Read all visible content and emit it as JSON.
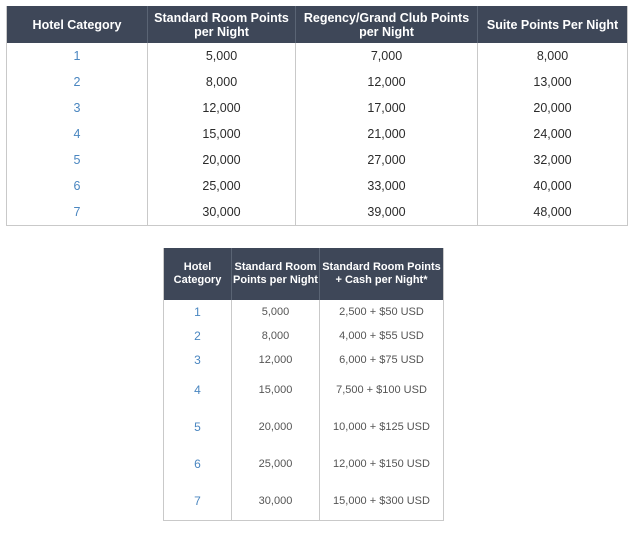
{
  "table1": {
    "headers": [
      "Hotel Category",
      "Standard Room Points per Night",
      "Regency/Grand Club Points per Night",
      "Suite Points Per Night"
    ],
    "rows": [
      [
        "1",
        "5,000",
        "7,000",
        "8,000"
      ],
      [
        "2",
        "8,000",
        "12,000",
        "13,000"
      ],
      [
        "3",
        "12,000",
        "17,000",
        "20,000"
      ],
      [
        "4",
        "15,000",
        "21,000",
        "24,000"
      ],
      [
        "5",
        "20,000",
        "27,000",
        "32,000"
      ],
      [
        "6",
        "25,000",
        "33,000",
        "40,000"
      ],
      [
        "7",
        "30,000",
        "39,000",
        "48,000"
      ]
    ]
  },
  "table2": {
    "headers": [
      "Hotel Category",
      "Standard Room Points per Night",
      "Standard Room Points + Cash per Night*"
    ],
    "rows": [
      [
        "1",
        "5,000",
        "2,500 + $50 USD"
      ],
      [
        "2",
        "8,000",
        "4,000 + $55 USD"
      ],
      [
        "3",
        "12,000",
        "6,000 + $75 USD"
      ],
      [
        "4",
        "15,000",
        "7,500 + $100 USD"
      ],
      [
        "5",
        "20,000",
        "10,000 + $125 USD"
      ],
      [
        "6",
        "25,000",
        "12,000 + $150 USD"
      ],
      [
        "7",
        "30,000",
        "15,000 + $300 USD"
      ]
    ]
  }
}
